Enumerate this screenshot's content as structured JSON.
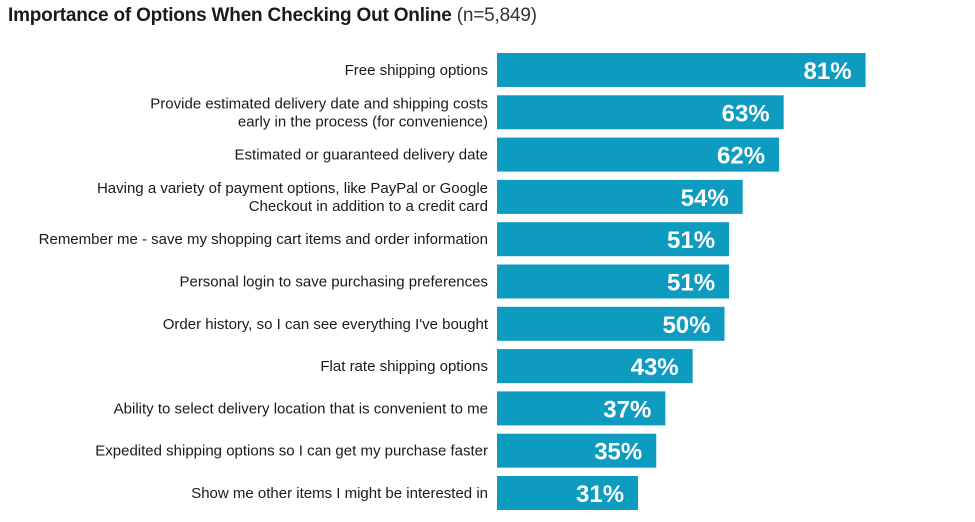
{
  "chart_data": {
    "type": "bar",
    "orientation": "horizontal",
    "title": "Importance of Options When Checking Out Online",
    "subtitle": "(n=5,849)",
    "bar_color": "#0E9BC0",
    "value_suffix": "%",
    "xlim": [
      0,
      100
    ],
    "grid": false,
    "categories": [
      [
        "Free shipping options"
      ],
      [
        "Provide estimated delivery date and shipping costs",
        "early in the process (for convenience)"
      ],
      [
        "Estimated or guaranteed delivery date"
      ],
      [
        "Having a variety of payment options, like PayPal or Google",
        "Checkout in addition to a credit card"
      ],
      [
        "Remember me - save my shopping cart items and order information"
      ],
      [
        "Personal login to save purchasing preferences"
      ],
      [
        "Order history, so I can see everything I've bought"
      ],
      [
        "Flat rate shipping options"
      ],
      [
        "Ability to select delivery location that is convenient to me"
      ],
      [
        "Expedited shipping options so I can get my purchase faster"
      ],
      [
        "Show me other items I might be interested in"
      ]
    ],
    "values": [
      81,
      63,
      62,
      54,
      51,
      51,
      50,
      43,
      37,
      35,
      31
    ],
    "value_labels": [
      "81%",
      "63%",
      "62%",
      "54%",
      "51%",
      "51%",
      "50%",
      "43%",
      "37%",
      "35%",
      "31%"
    ]
  }
}
